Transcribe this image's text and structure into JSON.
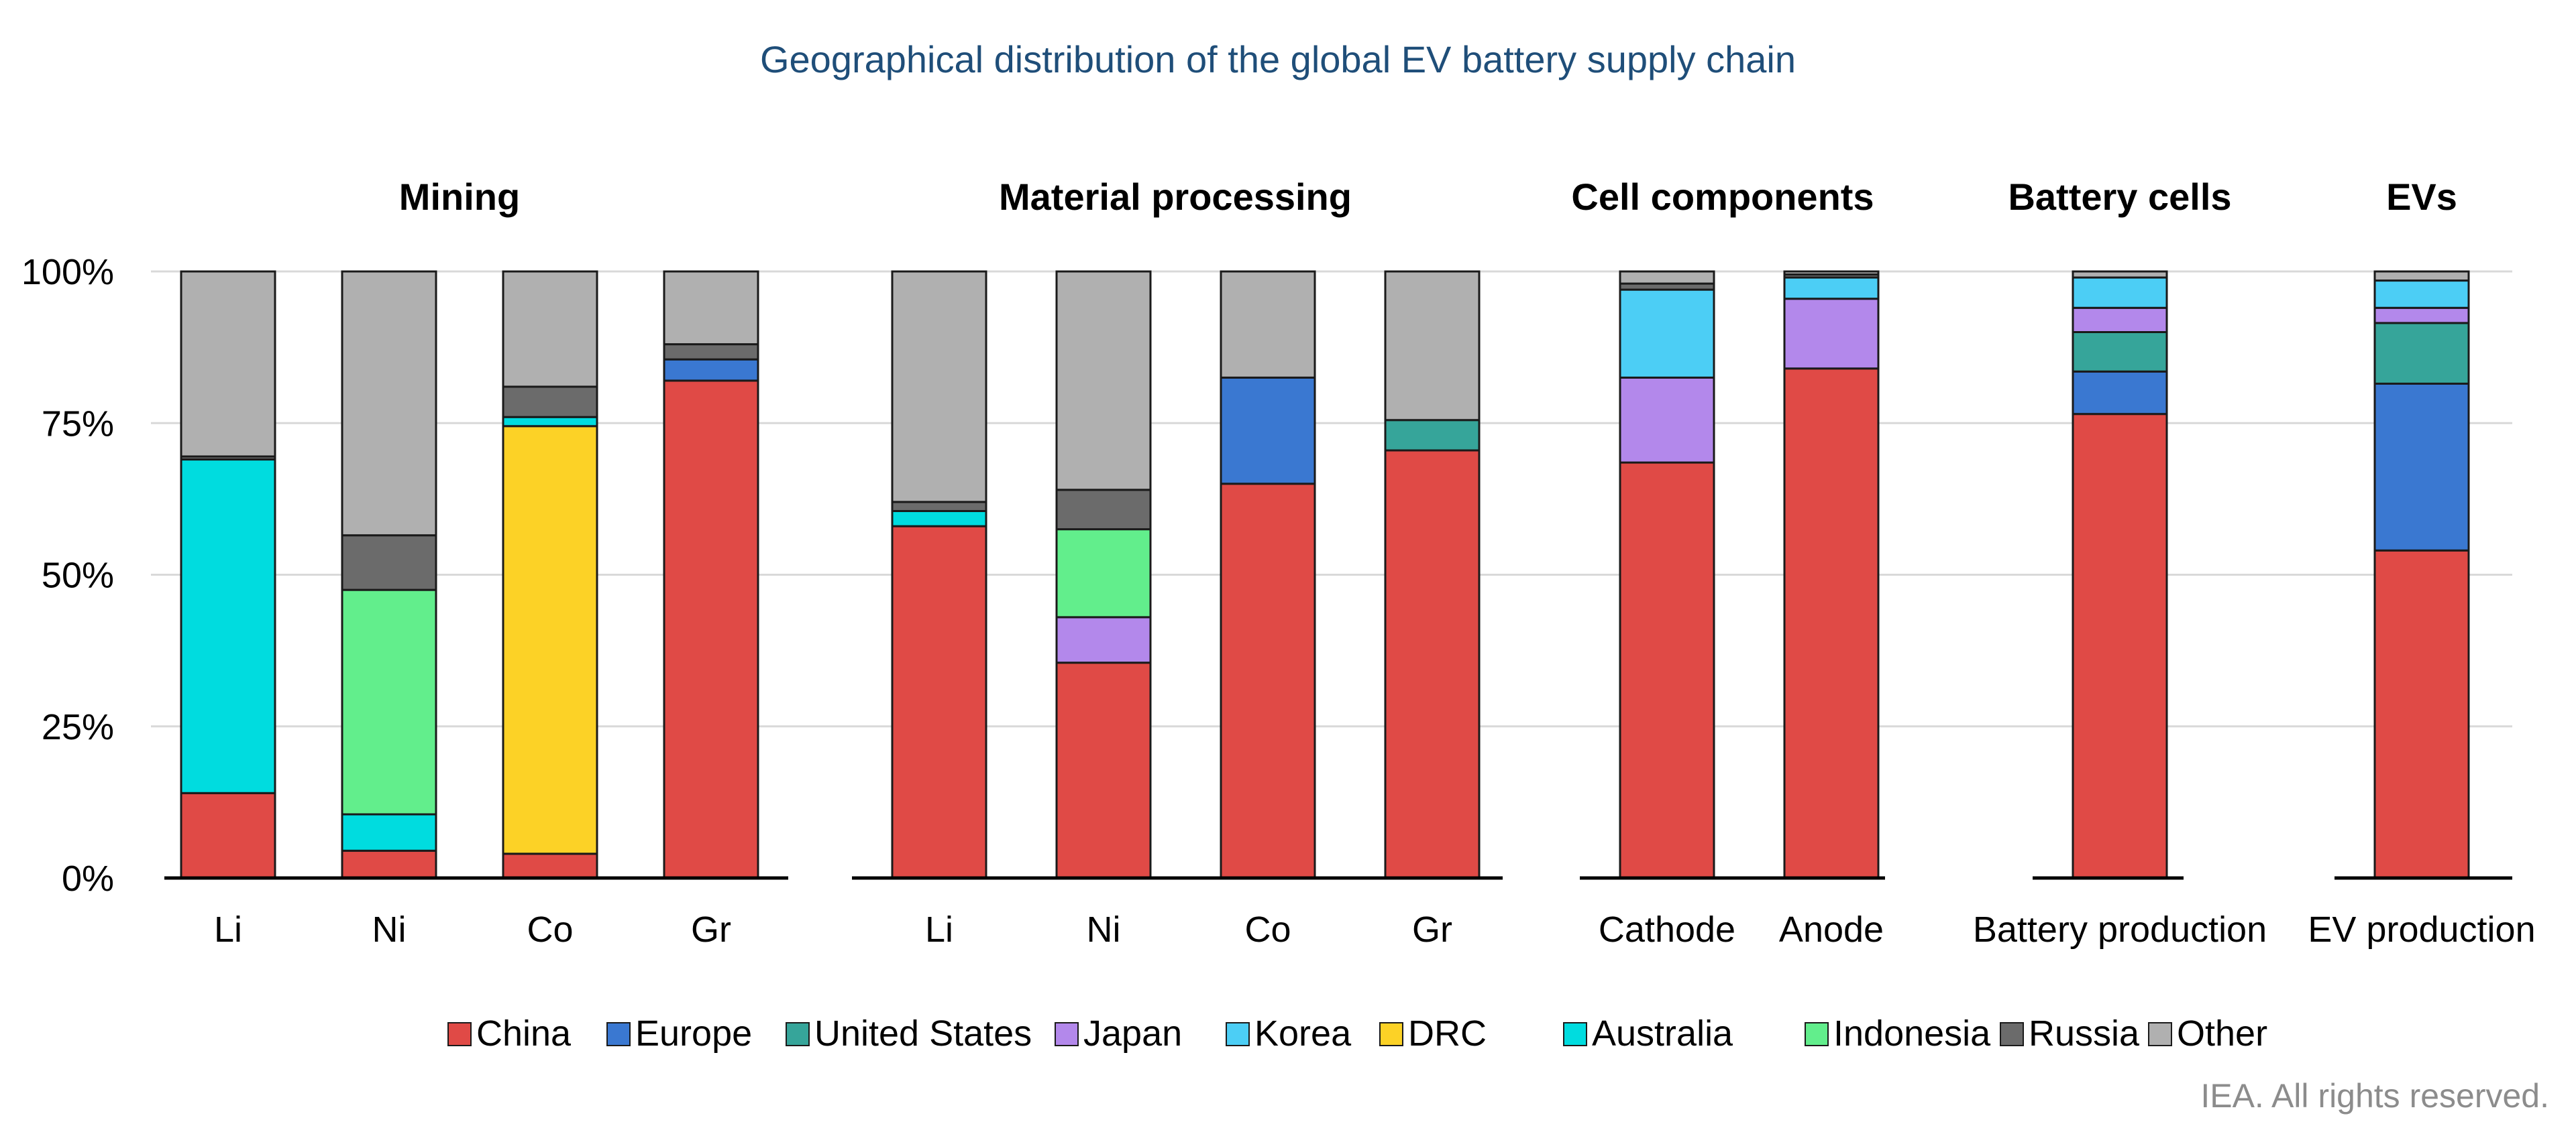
{
  "chart_data": {
    "type": "stacked-bar",
    "title": "Geographical distribution of the global EV battery supply chain",
    "ylim": [
      0,
      100
    ],
    "yticks": [
      {
        "value": 0,
        "label": "0%"
      },
      {
        "value": 25,
        "label": "25%"
      },
      {
        "value": 50,
        "label": "50%"
      },
      {
        "value": 75,
        "label": "75%"
      },
      {
        "value": 100,
        "label": "100%"
      }
    ],
    "series": [
      {
        "name": "China",
        "color": "#e04a46"
      },
      {
        "name": "Europe",
        "color": "#3a78d1"
      },
      {
        "name": "United States",
        "color": "#36a59a"
      },
      {
        "name": "Japan",
        "color": "#b388eb"
      },
      {
        "name": "Korea",
        "color": "#4ccef5"
      },
      {
        "name": "DRC",
        "color": "#fcd226"
      },
      {
        "name": "Australia",
        "color": "#00dcdf"
      },
      {
        "name": "Indonesia",
        "color": "#62ee8c"
      },
      {
        "name": "Russia",
        "color": "#6b6b6b"
      },
      {
        "name": "Other",
        "color": "#b0b0b0"
      }
    ],
    "panels": [
      {
        "title": "Mining",
        "categories": [
          {
            "label": "Li",
            "values": {
              "Australia": 55,
              "China": 14,
              "Russia": 0.5,
              "Other": 30.5
            }
          },
          {
            "label": "Ni",
            "values": {
              "Indonesia": 37,
              "Australia": 6,
              "China": 4.5,
              "Russia": 9,
              "Other": 43.5
            }
          },
          {
            "label": "Co",
            "values": {
              "DRC": 70.5,
              "Australia": 1.5,
              "China": 4,
              "Russia": 5,
              "Other": 19
            }
          },
          {
            "label": "Gr",
            "values": {
              "China": 82,
              "Russia": 2.5,
              "Europe": 3.5,
              "Other": 12
            }
          }
        ]
      },
      {
        "title": "Material processing",
        "categories": [
          {
            "label": "Li",
            "values": {
              "China": 58,
              "Australia": 2.5,
              "Russia": 1.5,
              "Other": 38
            }
          },
          {
            "label": "Ni",
            "values": {
              "China": 35.5,
              "Indonesia": 14.5,
              "Japan": 7.5,
              "Russia": 6.5,
              "Other": 36
            }
          },
          {
            "label": "Co",
            "values": {
              "China": 65,
              "Europe": 17.5,
              "Other": 17.5
            }
          },
          {
            "label": "Gr",
            "values": {
              "China": 70.5,
              "United States": 5,
              "Other": 24.5
            }
          }
        ]
      },
      {
        "title": "Cell components",
        "categories": [
          {
            "label": "Cathode",
            "values": {
              "China": 68.5,
              "Russia": 1,
              "Japan": 14,
              "Korea": 14.5,
              "Other": 2
            }
          },
          {
            "label": "Anode",
            "values": {
              "China": 84,
              "Russia": 0.5,
              "Japan": 11.5,
              "Korea": 3.5,
              "Other": 0.5
            }
          }
        ]
      },
      {
        "title": "Battery cells",
        "categories": [
          {
            "label": "Battery production",
            "values": {
              "China": 76.5,
              "Europe": 7,
              "United States": 6.5,
              "Korea": 5,
              "Japan": 4,
              "Other": 1
            }
          }
        ]
      },
      {
        "title": "EVs",
        "categories": [
          {
            "label": "EV production",
            "values": {
              "China": 54,
              "Europe": 27.5,
              "United States": 10,
              "Korea": 4.5,
              "Japan": 2.5,
              "Other": 1.5
            }
          }
        ]
      }
    ]
  },
  "credit": "IEA. All rights reserved."
}
